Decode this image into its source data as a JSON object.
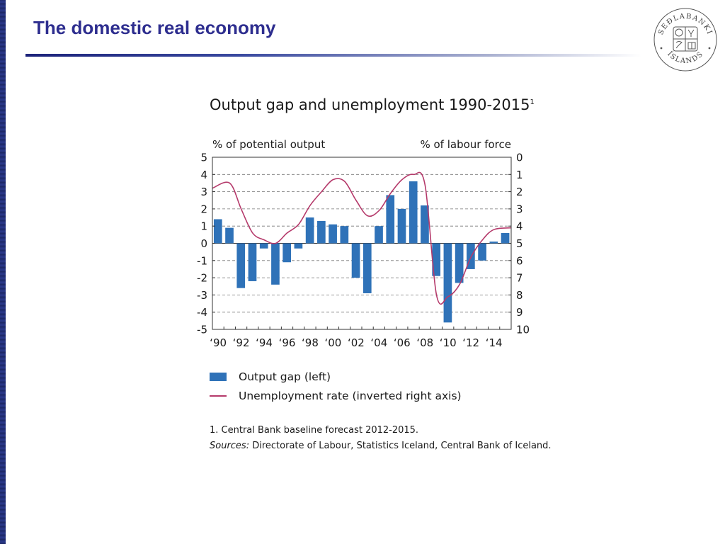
{
  "slide": {
    "title": "The domestic real economy",
    "logo_text": "SEÐLABANKI ÍSLANDS"
  },
  "chart_data": {
    "type": "bar",
    "title": "Output gap and unemployment 1990-2015",
    "title_footnote_mark": "1",
    "left_axis_label": "% of potential output",
    "right_axis_label": "% of labour force",
    "left_ylim": [
      -5,
      5
    ],
    "left_ticks": [
      "5",
      "4",
      "3",
      "2",
      "1",
      "0",
      "-1",
      "-2",
      "-3",
      "-4",
      "-5"
    ],
    "right_ylim_inverted": [
      0,
      10
    ],
    "right_ticks": [
      "0",
      "1",
      "2",
      "3",
      "4",
      "5",
      "6",
      "7",
      "8",
      "9",
      "10"
    ],
    "x_tick_labels": [
      "‘90",
      "‘92",
      "‘94",
      "‘96",
      "‘98",
      "‘00",
      "‘02",
      "‘04",
      "‘06",
      "‘08",
      "‘10",
      "‘12",
      "‘14"
    ],
    "categories": [
      1990,
      1991,
      1992,
      1993,
      1994,
      1995,
      1996,
      1997,
      1998,
      1999,
      2000,
      2001,
      2002,
      2003,
      2004,
      2005,
      2006,
      2007,
      2008,
      2009,
      2010,
      2011,
      2012,
      2013,
      2014,
      2015
    ],
    "grid": "horizontal dashed",
    "series": [
      {
        "name": "Output gap (left)",
        "kind": "bar",
        "axis": "left",
        "color": "#2f72b8",
        "values": [
          1.4,
          0.9,
          -2.6,
          -2.2,
          -0.3,
          -2.4,
          -1.1,
          -0.3,
          1.5,
          1.3,
          1.1,
          1.0,
          -2.0,
          -2.9,
          1.0,
          2.8,
          2.0,
          3.6,
          2.2,
          -1.9,
          -4.6,
          -2.3,
          -1.5,
          -1.0,
          0.1,
          0.6
        ]
      },
      {
        "name": "Unemployment rate (inverted right axis)",
        "kind": "line",
        "axis": "right-inverted",
        "color": "#b53a6b",
        "values": [
          1.8,
          1.5,
          3.0,
          4.4,
          4.8,
          5.0,
          4.4,
          3.9,
          2.8,
          2.0,
          1.3,
          1.4,
          2.5,
          3.4,
          3.1,
          2.1,
          1.3,
          1.0,
          1.6,
          8.0,
          8.1,
          7.4,
          5.8,
          4.8,
          4.2,
          4.1
        ]
      }
    ]
  },
  "legend": {
    "bar_label": "Output gap (left)",
    "line_label": "Unemployment rate (inverted right axis)"
  },
  "footnotes": {
    "note1": "1. Central Bank baseline forecast 2012-2015.",
    "sources_label": "Sources:",
    "sources_text": " Directorate of Labour, Statistics Iceland, Central Bank of Iceland."
  }
}
